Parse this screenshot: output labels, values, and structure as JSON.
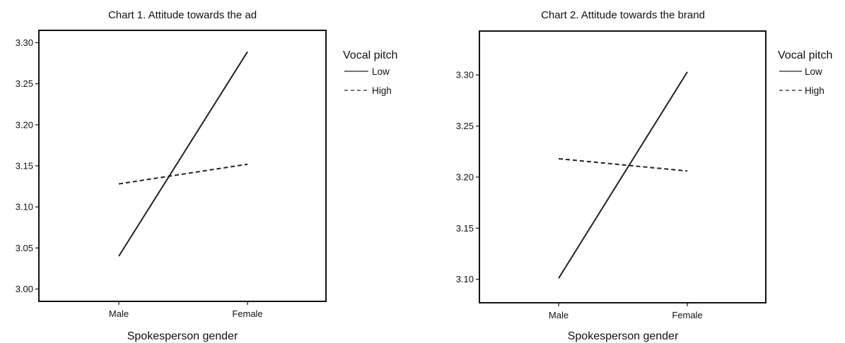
{
  "chart_data": [
    {
      "type": "line",
      "title": "Chart 1. Attitude towards the ad",
      "xlabel": "Spokesperson gender",
      "ylabel": "",
      "categories": [
        "Male",
        "Female"
      ],
      "ylim": [
        2.985,
        3.315
      ],
      "yticks": [
        "3.00",
        "3.05",
        "3.10",
        "3.15",
        "3.20",
        "3.25",
        "3.30"
      ],
      "legend_title": "Vocal pitch",
      "legend_position": "right",
      "grid": false,
      "series": [
        {
          "name": "Low",
          "style": "solid",
          "values": [
            3.04,
            3.289
          ]
        },
        {
          "name": "High",
          "style": "dashed",
          "values": [
            3.128,
            3.152
          ]
        }
      ]
    },
    {
      "type": "line",
      "title": "Chart 2. Attitude towards the brand",
      "xlabel": "Spokesperson gender",
      "ylabel": "",
      "categories": [
        "Male",
        "Female"
      ],
      "ylim": [
        3.077,
        3.343
      ],
      "yticks": [
        "3.10",
        "3.15",
        "3.20",
        "3.25",
        "3.30"
      ],
      "legend_title": "Vocal pitch",
      "legend_position": "right",
      "grid": false,
      "series": [
        {
          "name": "Low",
          "style": "solid",
          "values": [
            3.101,
            3.303
          ]
        },
        {
          "name": "High",
          "style": "dashed",
          "values": [
            3.218,
            3.206
          ]
        }
      ]
    }
  ],
  "colors": {
    "line": "#222222",
    "frame": "#111111"
  }
}
